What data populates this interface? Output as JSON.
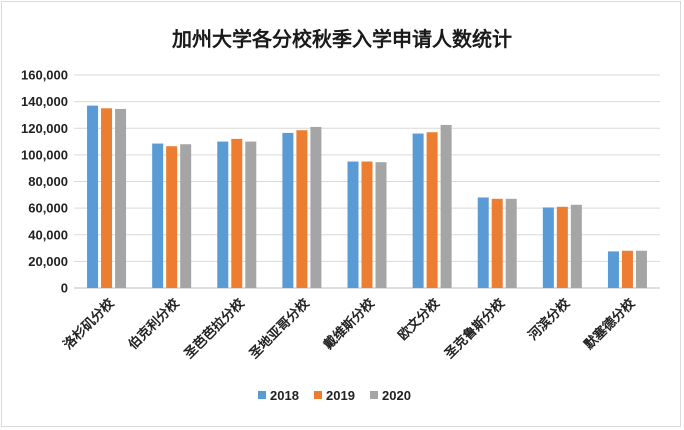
{
  "chart_data": {
    "type": "bar",
    "title": "加州大学各分校秋季入学申请人数统计",
    "categories": [
      "洛杉矶分校",
      "伯克利分校",
      "圣芭芭拉分校",
      "圣地亚哥分校",
      "戴维斯分校",
      "欧文分校",
      "圣克鲁斯分校",
      "河滨分校",
      "默塞德分校"
    ],
    "series": [
      {
        "name": "2018",
        "color": "#5b9bd5",
        "values": [
          137000,
          108500,
          110000,
          116500,
          95000,
          116000,
          68000,
          60500,
          27500
        ]
      },
      {
        "name": "2019",
        "color": "#ed7d31",
        "values": [
          135000,
          106500,
          112000,
          118500,
          95000,
          117000,
          67000,
          61000,
          28000
        ]
      },
      {
        "name": "2020",
        "color": "#a5a5a5",
        "values": [
          134500,
          108000,
          110000,
          121000,
          94500,
          122500,
          67000,
          62500,
          28000
        ]
      }
    ],
    "ylim": [
      0,
      160000
    ],
    "yticks": [
      "0",
      "20,000",
      "40,000",
      "60,000",
      "80,000",
      "100,000",
      "120,000",
      "140,000",
      "160,000"
    ],
    "grid": true,
    "legend": "bottom-center"
  }
}
